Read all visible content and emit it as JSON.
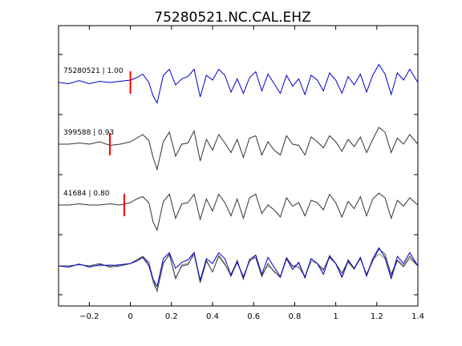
{
  "chart_data": {
    "type": "line",
    "title": "75280521.NC.CAL.EHZ",
    "xlabel": "",
    "ylabel": "",
    "xlim": [
      -0.35,
      1.4
    ],
    "x_ticks": [
      -0.2,
      0,
      0.2,
      0.4,
      0.6,
      0.8,
      1,
      1.2,
      1.4
    ],
    "x_tick_labels": [
      "−0.2",
      "0",
      "0.2",
      "0.4",
      "0.6",
      "0.8",
      "1",
      "1.2",
      "1.4"
    ],
    "grid": false,
    "colors": {
      "primary": "#0000cc",
      "secondary": "#333333",
      "overlay_gray": "#888888",
      "marker": "#ff0000"
    },
    "traces": [
      {
        "label": "75280521 | 1.00",
        "color": "#0000cc",
        "pick_time": 0.0,
        "x": [
          -0.35,
          -0.3,
          -0.25,
          -0.2,
          -0.15,
          -0.1,
          -0.05,
          0.0,
          0.03,
          0.06,
          0.09,
          0.11,
          0.13,
          0.16,
          0.19,
          0.22,
          0.25,
          0.28,
          0.31,
          0.34,
          0.37,
          0.4,
          0.43,
          0.46,
          0.49,
          0.52,
          0.55,
          0.58,
          0.61,
          0.64,
          0.67,
          0.7,
          0.73,
          0.76,
          0.79,
          0.82,
          0.85,
          0.88,
          0.91,
          0.94,
          0.97,
          1.0,
          1.03,
          1.06,
          1.09,
          1.12,
          1.15,
          1.18,
          1.21,
          1.24,
          1.27,
          1.3,
          1.33,
          1.36,
          1.4
        ],
        "y": [
          0.0,
          -0.05,
          0.08,
          -0.05,
          0.05,
          0.0,
          0.05,
          0.1,
          0.2,
          0.35,
          0.0,
          -0.55,
          -0.85,
          0.3,
          0.55,
          -0.1,
          0.15,
          0.25,
          0.55,
          -0.6,
          0.3,
          0.1,
          0.55,
          0.3,
          -0.4,
          0.15,
          -0.45,
          0.2,
          0.45,
          -0.35,
          0.35,
          -0.05,
          -0.45,
          0.3,
          -0.15,
          0.15,
          -0.5,
          0.3,
          0.1,
          -0.35,
          0.4,
          0.1,
          -0.45,
          0.25,
          -0.1,
          0.35,
          -0.4,
          0.3,
          0.75,
          0.35,
          -0.5,
          0.4,
          0.1,
          0.55,
          0.0
        ]
      },
      {
        "label": "399588 | 0.93",
        "color": "#333333",
        "pick_time": -0.1,
        "x": [
          -0.35,
          -0.3,
          -0.25,
          -0.2,
          -0.15,
          -0.1,
          -0.05,
          0.0,
          0.03,
          0.06,
          0.09,
          0.11,
          0.13,
          0.16,
          0.19,
          0.22,
          0.25,
          0.28,
          0.31,
          0.34,
          0.37,
          0.4,
          0.43,
          0.46,
          0.49,
          0.52,
          0.55,
          0.58,
          0.61,
          0.64,
          0.67,
          0.7,
          0.73,
          0.76,
          0.79,
          0.82,
          0.85,
          0.88,
          0.91,
          0.94,
          0.97,
          1.0,
          1.03,
          1.06,
          1.09,
          1.12,
          1.15,
          1.18,
          1.21,
          1.24,
          1.27,
          1.3,
          1.33,
          1.36,
          1.4
        ],
        "y": [
          0.0,
          0.0,
          0.05,
          0.0,
          0.1,
          -0.05,
          0.0,
          0.1,
          0.25,
          0.4,
          0.15,
          -0.55,
          -1.05,
          0.1,
          0.5,
          -0.5,
          0.0,
          0.05,
          0.55,
          -0.7,
          0.2,
          -0.25,
          0.4,
          0.05,
          -0.35,
          0.2,
          -0.55,
          0.25,
          0.35,
          -0.45,
          0.1,
          -0.25,
          -0.45,
          0.35,
          0.0,
          -0.05,
          -0.45,
          0.3,
          0.1,
          -0.15,
          0.35,
          0.1,
          -0.3,
          0.2,
          -0.1,
          0.3,
          -0.35,
          0.2,
          0.7,
          0.5,
          -0.35,
          0.25,
          0.0,
          0.4,
          0.0
        ]
      },
      {
        "label": "41684 | 0.80",
        "color": "#333333",
        "pick_time": -0.03,
        "x": [
          -0.35,
          -0.3,
          -0.25,
          -0.2,
          -0.15,
          -0.1,
          -0.05,
          0.0,
          0.03,
          0.06,
          0.09,
          0.11,
          0.13,
          0.16,
          0.19,
          0.22,
          0.25,
          0.28,
          0.31,
          0.34,
          0.37,
          0.4,
          0.43,
          0.46,
          0.49,
          0.52,
          0.55,
          0.58,
          0.61,
          0.64,
          0.67,
          0.7,
          0.73,
          0.76,
          0.79,
          0.82,
          0.85,
          0.88,
          0.91,
          0.94,
          0.97,
          1.0,
          1.03,
          1.06,
          1.09,
          1.12,
          1.15,
          1.18,
          1.21,
          1.24,
          1.27,
          1.3,
          1.33,
          1.36,
          1.4
        ],
        "y": [
          0.0,
          0.0,
          0.05,
          0.0,
          0.0,
          0.05,
          0.0,
          0.1,
          0.25,
          0.35,
          0.1,
          -0.7,
          -1.05,
          0.15,
          0.45,
          -0.55,
          0.05,
          0.1,
          0.45,
          -0.6,
          0.25,
          -0.25,
          0.45,
          0.1,
          -0.45,
          0.25,
          -0.55,
          0.3,
          0.45,
          -0.35,
          0.0,
          -0.2,
          -0.5,
          0.3,
          -0.05,
          0.1,
          -0.45,
          0.2,
          0.1,
          -0.2,
          0.45,
          0.1,
          -0.5,
          0.15,
          -0.15,
          0.35,
          -0.45,
          0.25,
          0.5,
          0.3,
          -0.55,
          0.2,
          -0.05,
          0.3,
          0.0
        ]
      }
    ]
  }
}
